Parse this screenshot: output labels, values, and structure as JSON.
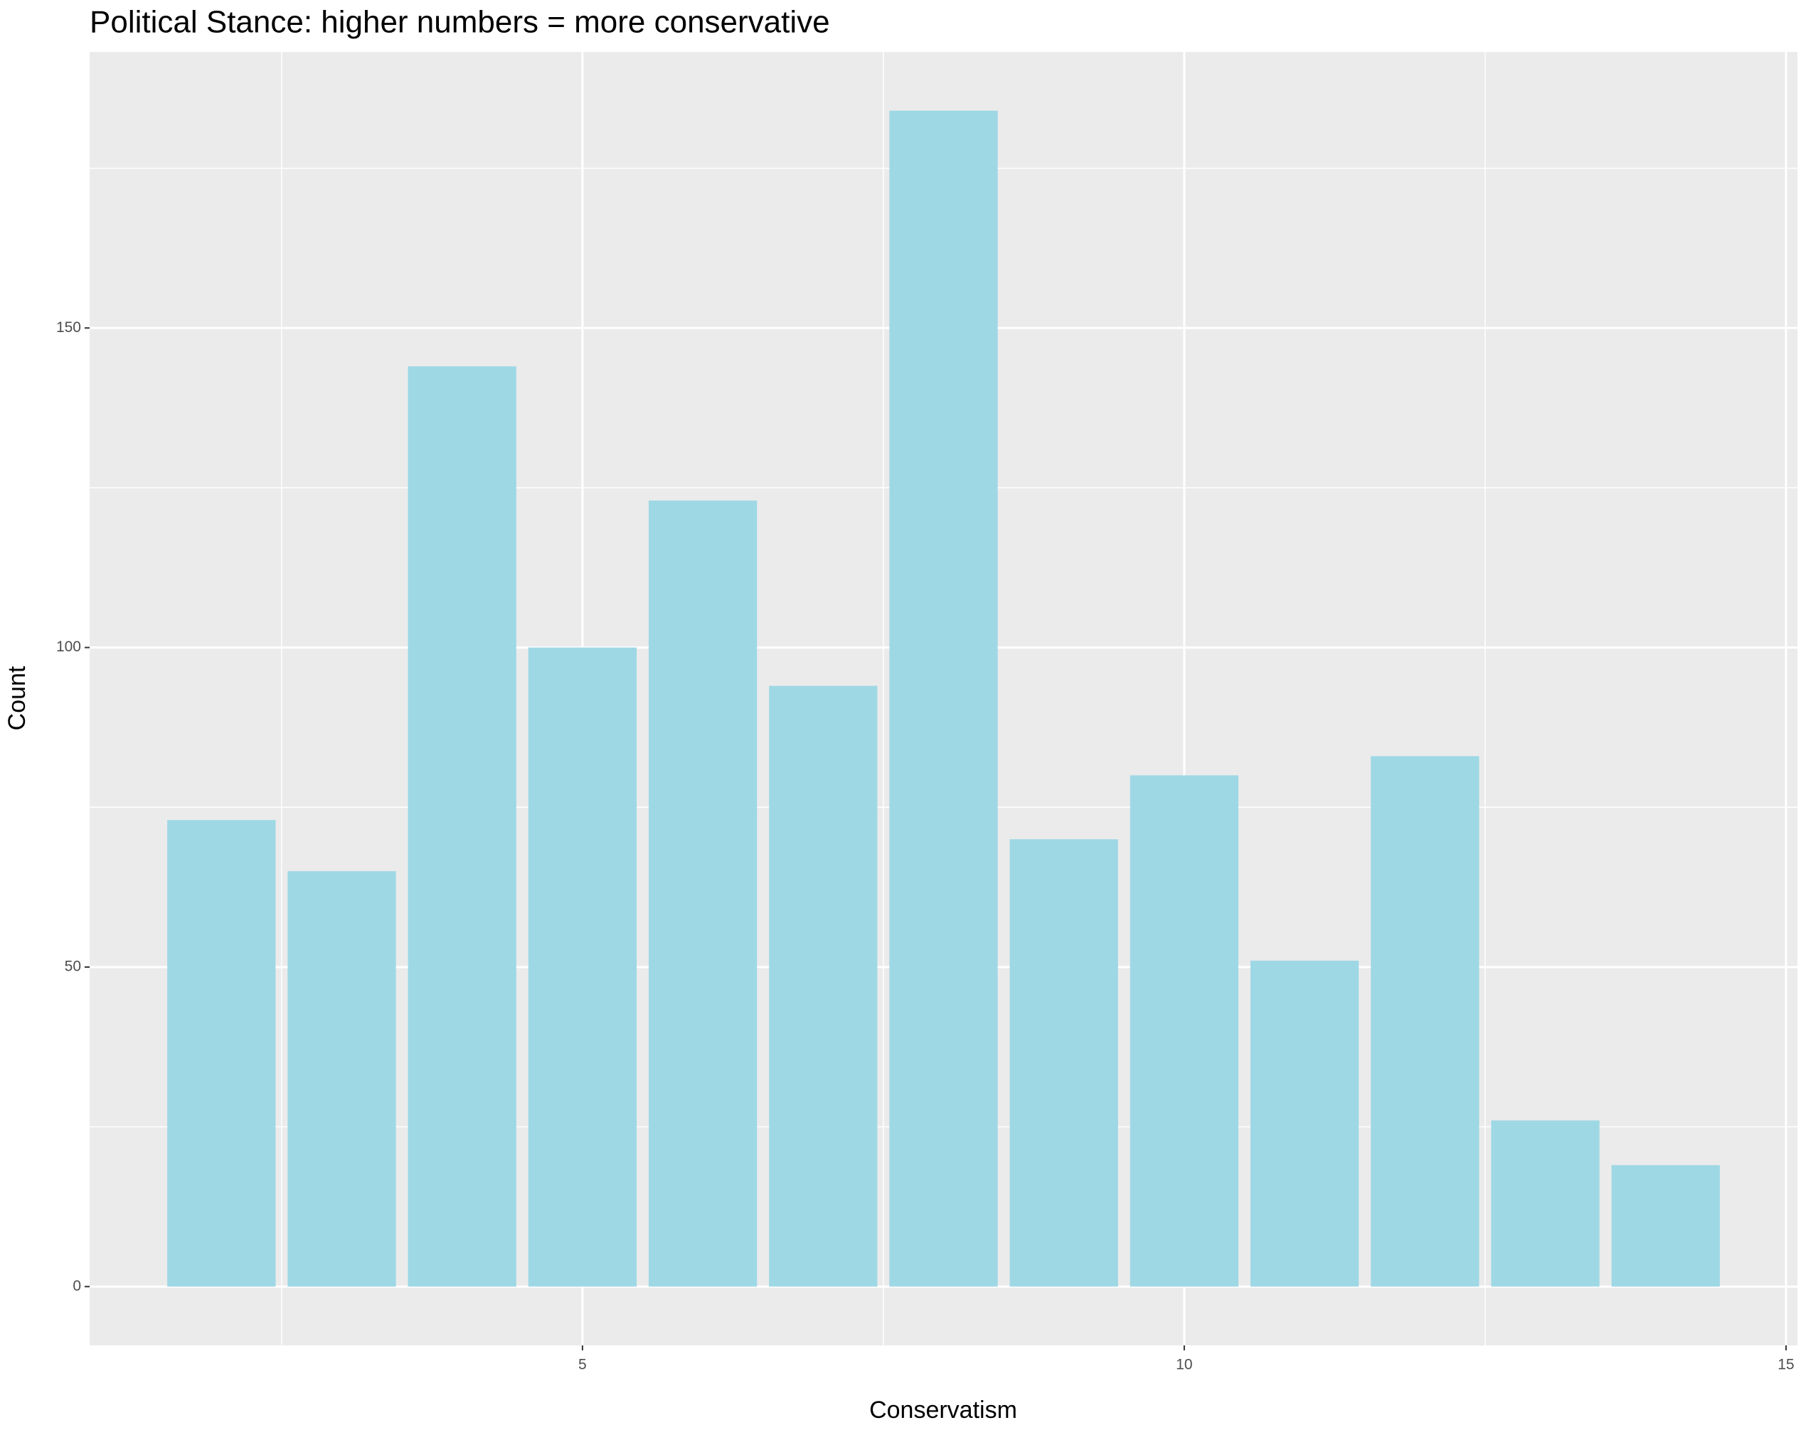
{
  "chart_data": {
    "type": "bar",
    "title": "Political Stance:  higher numbers = more conservative",
    "x_label": "Conservatism",
    "y_label": "Count",
    "x": [
      2,
      3,
      4,
      5,
      6,
      7,
      8,
      9,
      10,
      11,
      12,
      13,
      14
    ],
    "values": [
      73,
      65,
      144,
      100,
      123,
      94,
      184,
      70,
      80,
      51,
      83,
      26,
      19
    ],
    "color": "#9ed8e5",
    "xlim": [
      0.905,
      15.095
    ],
    "xticks": [
      5,
      10,
      15
    ],
    "ylim": [
      -9.2,
      193.2
    ],
    "yticks": [
      0,
      50,
      100,
      150
    ],
    "grid": true
  }
}
